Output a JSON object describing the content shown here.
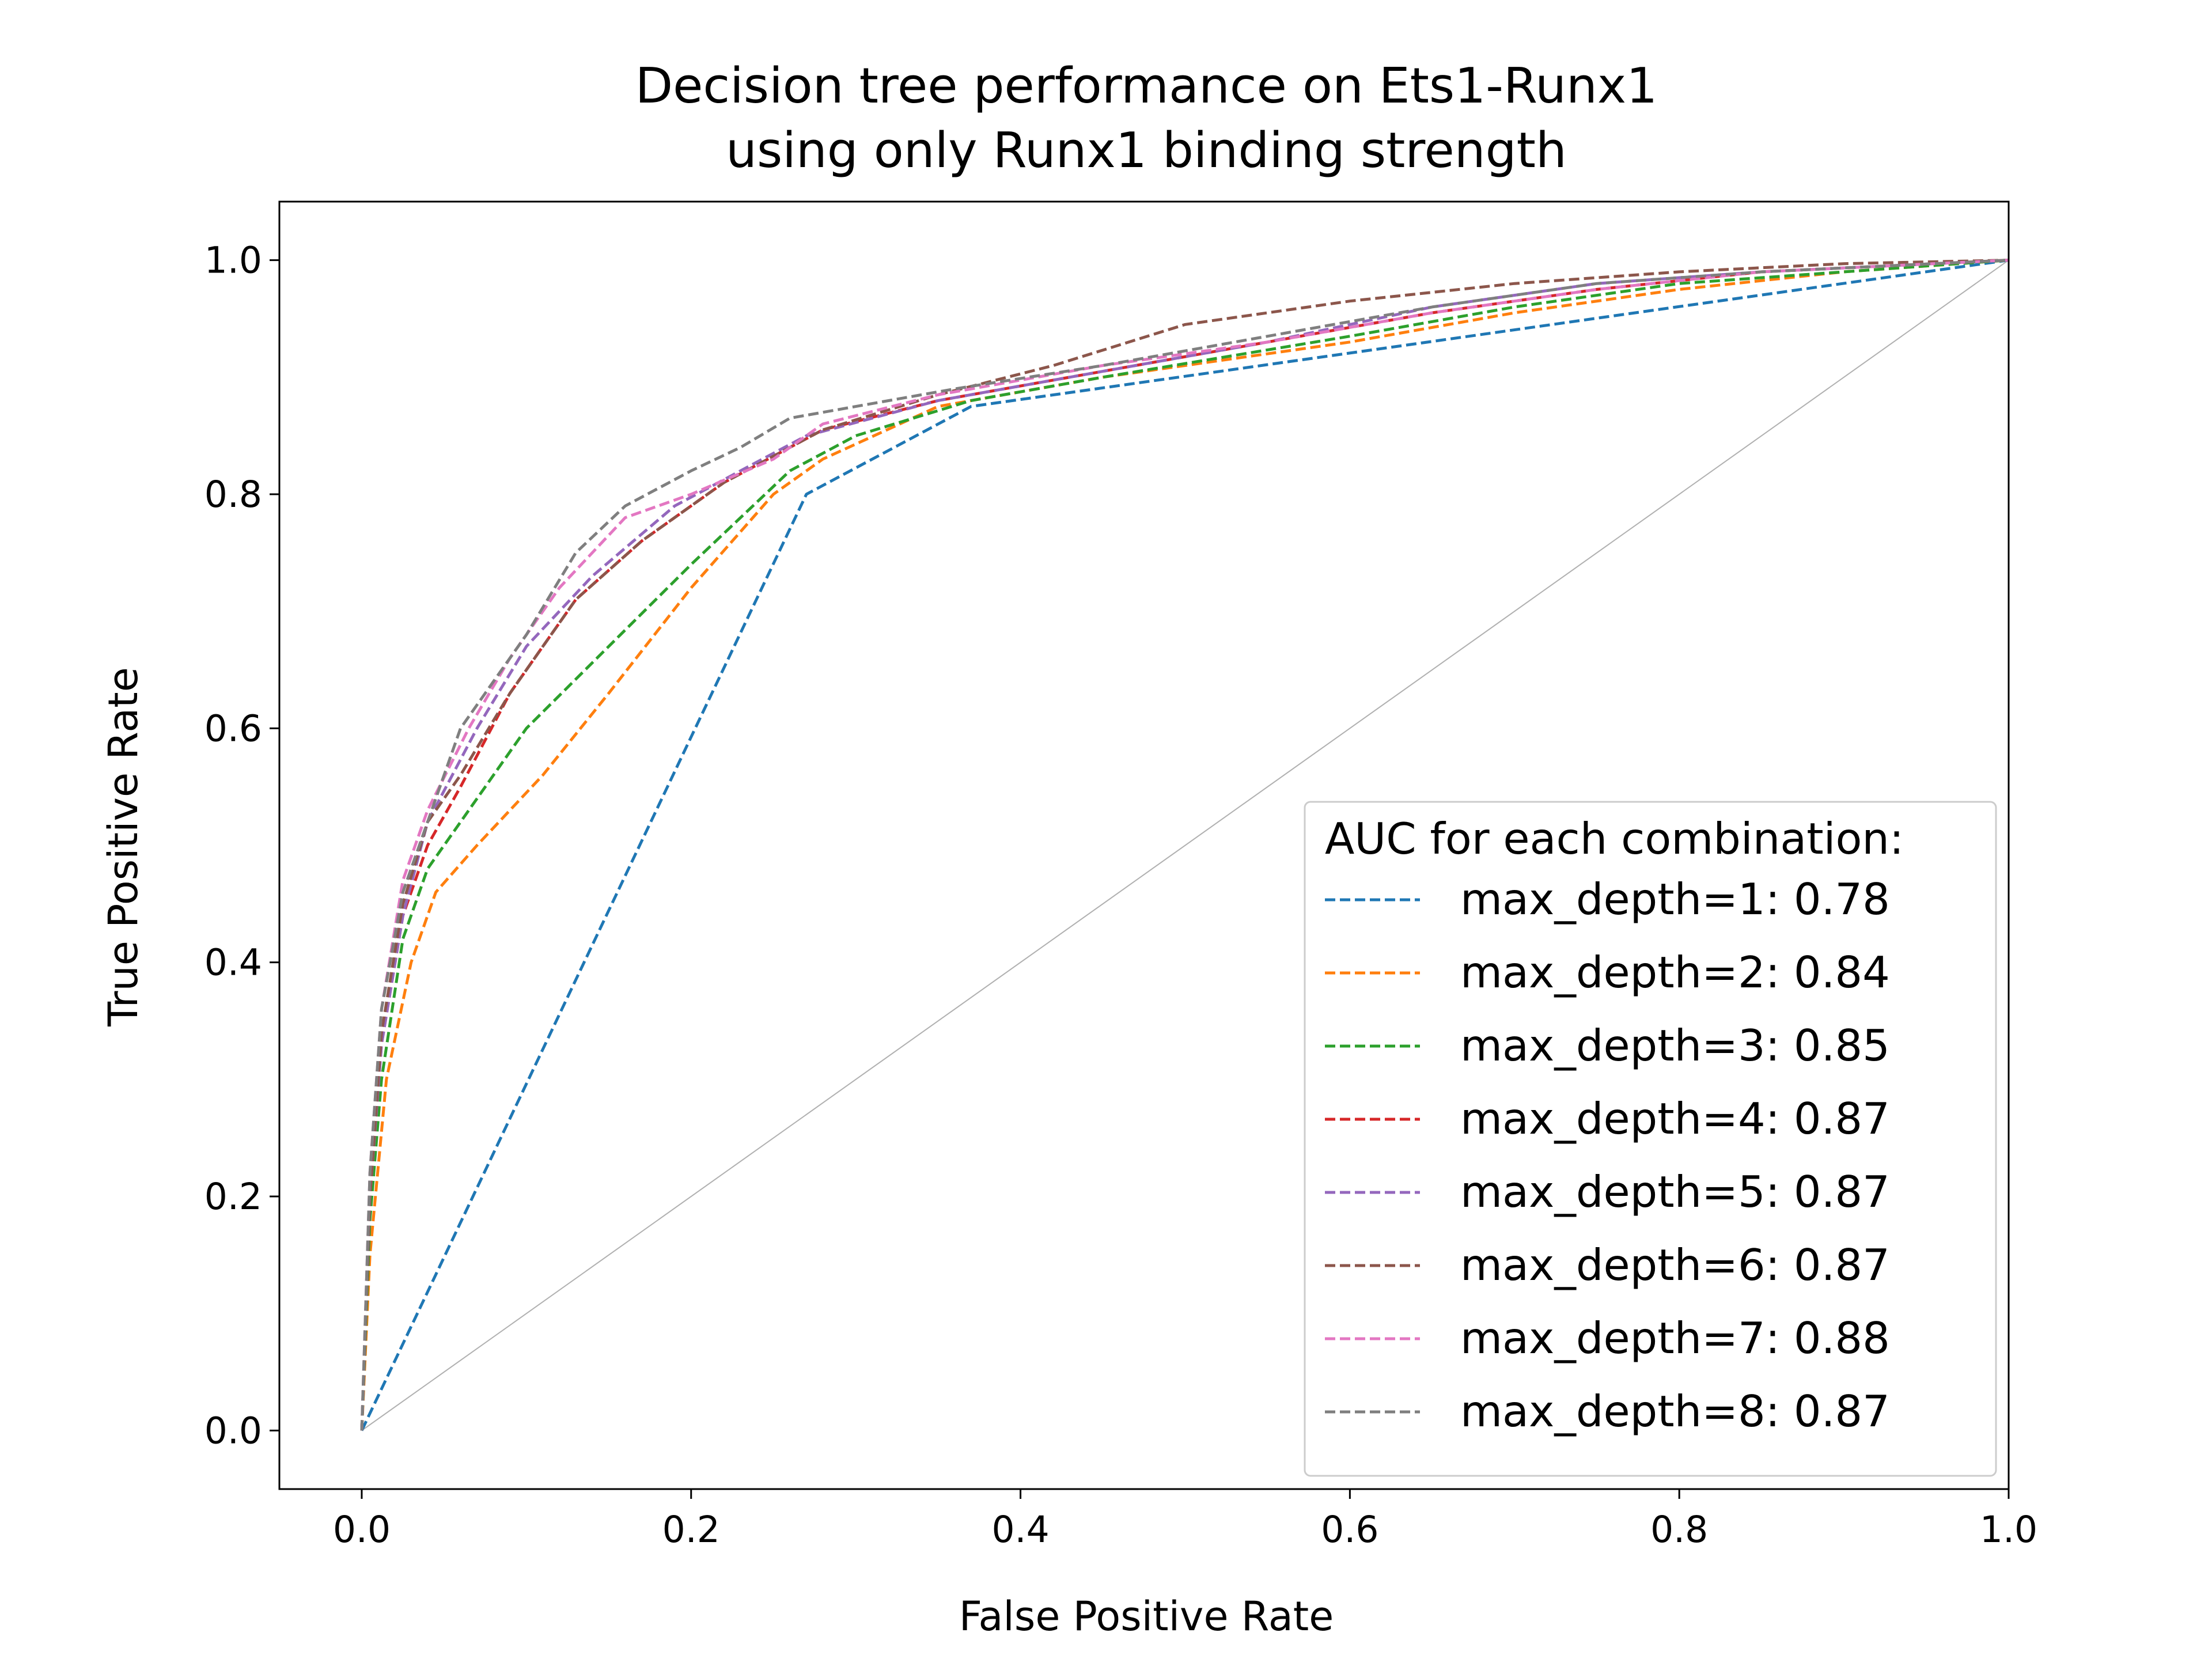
{
  "chart_data": {
    "type": "line",
    "title_lines": [
      "Decision tree performance on Ets1-Runx1",
      "using only Runx1 binding strength"
    ],
    "xlabel": "False Positive Rate",
    "ylabel": "True Positive Rate",
    "xlim": [
      -0.05,
      1.0
    ],
    "ylim": [
      -0.05,
      1.05
    ],
    "xticks": [
      0.0,
      0.2,
      0.4,
      0.6,
      0.8,
      1.0
    ],
    "xtick_labels": [
      "0.0",
      "0.2",
      "0.4",
      "0.6",
      "0.8",
      "1.0"
    ],
    "yticks": [
      0.0,
      0.2,
      0.4,
      0.6,
      0.8,
      1.0
    ],
    "ytick_labels": [
      "0.0",
      "0.2",
      "0.4",
      "0.6",
      "0.8",
      "1.0"
    ],
    "grid": false,
    "legend": {
      "title": "AUC for each combination:",
      "placement": "lower-right"
    },
    "reference_line": {
      "x": [
        0,
        1
      ],
      "y": [
        0,
        1
      ],
      "color": "#b0b0b0"
    },
    "series": [
      {
        "name": "max_depth=1: 0.78",
        "color": "#1f77b4",
        "x": [
          0,
          0.27,
          0.37,
          1.0
        ],
        "y": [
          0,
          0.8,
          0.875,
          1.0
        ]
      },
      {
        "name": "max_depth=2: 0.84",
        "color": "#ff7f0e",
        "x": [
          0,
          0.005,
          0.015,
          0.03,
          0.045,
          0.07,
          0.11,
          0.15,
          0.2,
          0.25,
          0.28,
          0.35,
          0.45,
          0.6,
          0.7,
          0.8,
          0.9,
          1.0
        ],
        "y": [
          0,
          0.15,
          0.3,
          0.4,
          0.46,
          0.5,
          0.56,
          0.63,
          0.72,
          0.8,
          0.83,
          0.875,
          0.9,
          0.93,
          0.955,
          0.975,
          0.99,
          1.0
        ]
      },
      {
        "name": "max_depth=3: 0.85",
        "color": "#2ca02c",
        "x": [
          0,
          0.005,
          0.012,
          0.025,
          0.04,
          0.06,
          0.1,
          0.15,
          0.2,
          0.26,
          0.3,
          0.37,
          0.45,
          0.6,
          0.7,
          0.8,
          0.9,
          1.0
        ],
        "y": [
          0,
          0.18,
          0.3,
          0.42,
          0.48,
          0.52,
          0.6,
          0.67,
          0.74,
          0.82,
          0.85,
          0.88,
          0.9,
          0.935,
          0.96,
          0.98,
          0.99,
          1.0
        ]
      },
      {
        "name": "max_depth=4: 0.87",
        "color": "#d62728",
        "x": [
          0,
          0.005,
          0.012,
          0.025,
          0.04,
          0.06,
          0.09,
          0.13,
          0.17,
          0.22,
          0.28,
          0.35,
          0.45,
          0.55,
          0.65,
          0.75,
          0.85,
          1.0
        ],
        "y": [
          0,
          0.2,
          0.33,
          0.44,
          0.5,
          0.55,
          0.63,
          0.71,
          0.76,
          0.81,
          0.855,
          0.88,
          0.905,
          0.93,
          0.955,
          0.975,
          0.99,
          1.0
        ]
      },
      {
        "name": "max_depth=5: 0.87",
        "color": "#9467bd",
        "x": [
          0,
          0.005,
          0.012,
          0.025,
          0.04,
          0.07,
          0.1,
          0.14,
          0.19,
          0.23,
          0.27,
          0.35,
          0.45,
          0.55,
          0.65,
          0.75,
          0.85,
          1.0
        ],
        "y": [
          0,
          0.2,
          0.33,
          0.44,
          0.52,
          0.6,
          0.67,
          0.73,
          0.79,
          0.82,
          0.85,
          0.88,
          0.905,
          0.93,
          0.96,
          0.98,
          0.99,
          1.0
        ]
      },
      {
        "name": "max_depth=6: 0.87",
        "color": "#8c564b",
        "x": [
          0,
          0.005,
          0.012,
          0.025,
          0.04,
          0.06,
          0.09,
          0.13,
          0.17,
          0.22,
          0.28,
          0.35,
          0.42,
          0.5,
          0.6,
          0.7,
          0.8,
          0.9,
          1.0
        ],
        "y": [
          0,
          0.2,
          0.34,
          0.45,
          0.52,
          0.56,
          0.63,
          0.71,
          0.76,
          0.81,
          0.855,
          0.885,
          0.91,
          0.945,
          0.965,
          0.98,
          0.99,
          0.997,
          1.0
        ]
      },
      {
        "name": "max_depth=7: 0.88",
        "color": "#e377c2",
        "x": [
          0,
          0.005,
          0.012,
          0.025,
          0.04,
          0.065,
          0.09,
          0.12,
          0.16,
          0.2,
          0.25,
          0.28,
          0.35,
          0.45,
          0.55,
          0.65,
          0.75,
          0.85,
          1.0
        ],
        "y": [
          0,
          0.22,
          0.36,
          0.47,
          0.53,
          0.6,
          0.66,
          0.72,
          0.78,
          0.8,
          0.83,
          0.86,
          0.885,
          0.91,
          0.93,
          0.955,
          0.975,
          0.99,
          1.0
        ]
      },
      {
        "name": "max_depth=8: 0.87",
        "color": "#7f7f7f",
        "x": [
          0,
          0.005,
          0.012,
          0.025,
          0.04,
          0.06,
          0.08,
          0.1,
          0.13,
          0.16,
          0.2,
          0.23,
          0.26,
          0.3,
          0.36,
          0.45,
          0.55,
          0.65,
          0.75,
          0.85,
          1.0
        ],
        "y": [
          0,
          0.22,
          0.36,
          0.46,
          0.52,
          0.6,
          0.64,
          0.68,
          0.75,
          0.79,
          0.82,
          0.84,
          0.865,
          0.875,
          0.89,
          0.91,
          0.935,
          0.96,
          0.98,
          0.99,
          1.0
        ]
      }
    ]
  }
}
